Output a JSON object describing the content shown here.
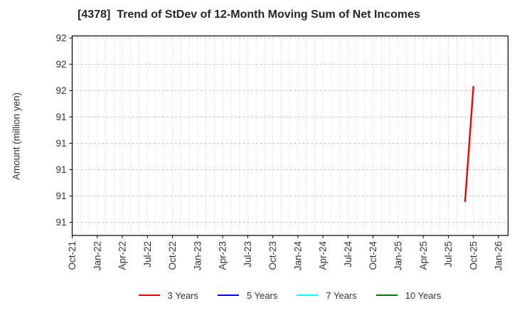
{
  "chart_data": {
    "type": "line",
    "title": "[4378]  Trend of StDev of 12-Month Moving Sum of Net Incomes",
    "ylabel": "Amount (million yen)",
    "x_tick_labels": [
      "Oct-21",
      "Jan-22",
      "Apr-22",
      "Jul-22",
      "Oct-22",
      "Jan-23",
      "Apr-23",
      "Jul-23",
      "Oct-23",
      "Jan-24",
      "Apr-24",
      "Jul-24",
      "Oct-24",
      "Jan-25",
      "Apr-25",
      "Jul-25",
      "Oct-25",
      "Jan-26"
    ],
    "x_months_per_tick": 3,
    "xlim_months": [
      0,
      52.15
    ],
    "y_ticks": [
      {
        "value": 92.0,
        "label": "92"
      },
      {
        "value": 91.8,
        "label": "92"
      },
      {
        "value": 91.6,
        "label": "92"
      },
      {
        "value": 91.4,
        "label": "91"
      },
      {
        "value": 91.2,
        "label": "91"
      },
      {
        "value": 91.0,
        "label": "91"
      },
      {
        "value": 90.8,
        "label": "91"
      },
      {
        "value": 90.6,
        "label": "91"
      }
    ],
    "ylim": [
      90.5,
      92.015
    ],
    "grid": {
      "on": true,
      "color": "#bbbbbb"
    },
    "axis_color": "#000000",
    "series": [
      {
        "name": "3 Years",
        "color": "#ff0000",
        "points": [
          {
            "x_label": "Sep-25",
            "month_index": 47,
            "value": 90.76
          },
          {
            "x_label": "Oct-25",
            "month_index": 48,
            "value": 91.63
          }
        ]
      },
      {
        "name": "5 Years",
        "color": "#0000ff",
        "points": []
      },
      {
        "name": "7 Years",
        "color": "#00ffff",
        "points": []
      },
      {
        "name": "10 Years",
        "color": "#008000",
        "points": []
      }
    ],
    "legend": {
      "position": "bottom-center",
      "entries": [
        "3 Years",
        "5 Years",
        "7 Years",
        "10 Years"
      ]
    }
  }
}
